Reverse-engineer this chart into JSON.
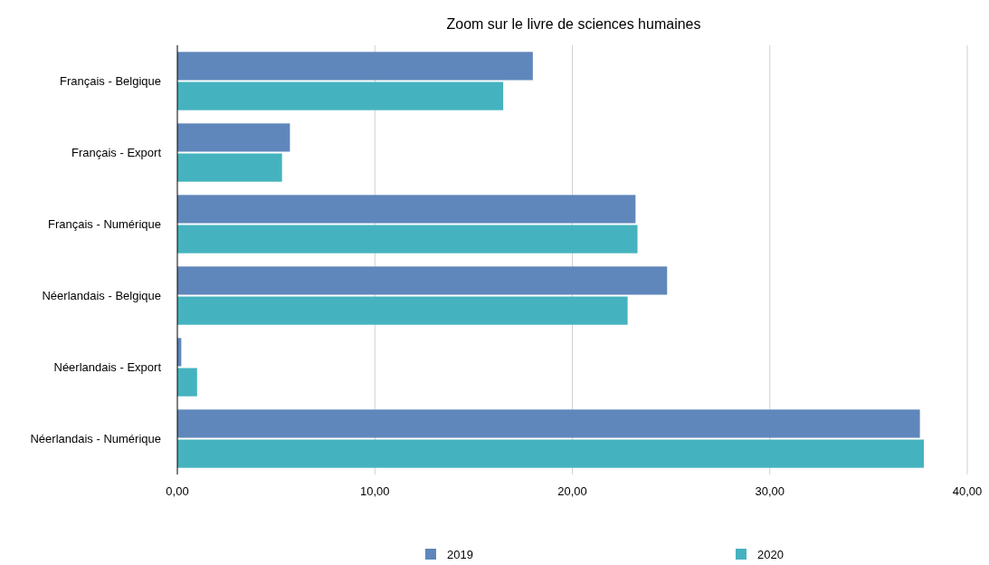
{
  "chart_data": {
    "type": "bar",
    "orientation": "horizontal",
    "title": "Zoom sur le livre de sciences humaines",
    "categories": [
      "Français - Belgique",
      "Français - Export",
      "Français - Numérique",
      "Néerlandais - Belgique",
      "Néerlandais - Export",
      "Néerlandais - Numérique"
    ],
    "series": [
      {
        "name": "2019",
        "color": "#5f87bb",
        "values": [
          18.0,
          5.7,
          23.2,
          24.8,
          0.2,
          37.6
        ]
      },
      {
        "name": "2020",
        "color": "#45b3bf",
        "values": [
          16.5,
          5.3,
          23.3,
          22.8,
          1.0,
          37.8
        ]
      }
    ],
    "xlim": [
      0,
      40
    ],
    "xticks": [
      {
        "value": 0,
        "label": "0,00"
      },
      {
        "value": 10,
        "label": "10,00"
      },
      {
        "value": 20,
        "label": "20,00"
      },
      {
        "value": 30,
        "label": "30,00"
      },
      {
        "value": 40,
        "label": "40,00"
      }
    ],
    "grid": "x",
    "legend": "bottom"
  }
}
